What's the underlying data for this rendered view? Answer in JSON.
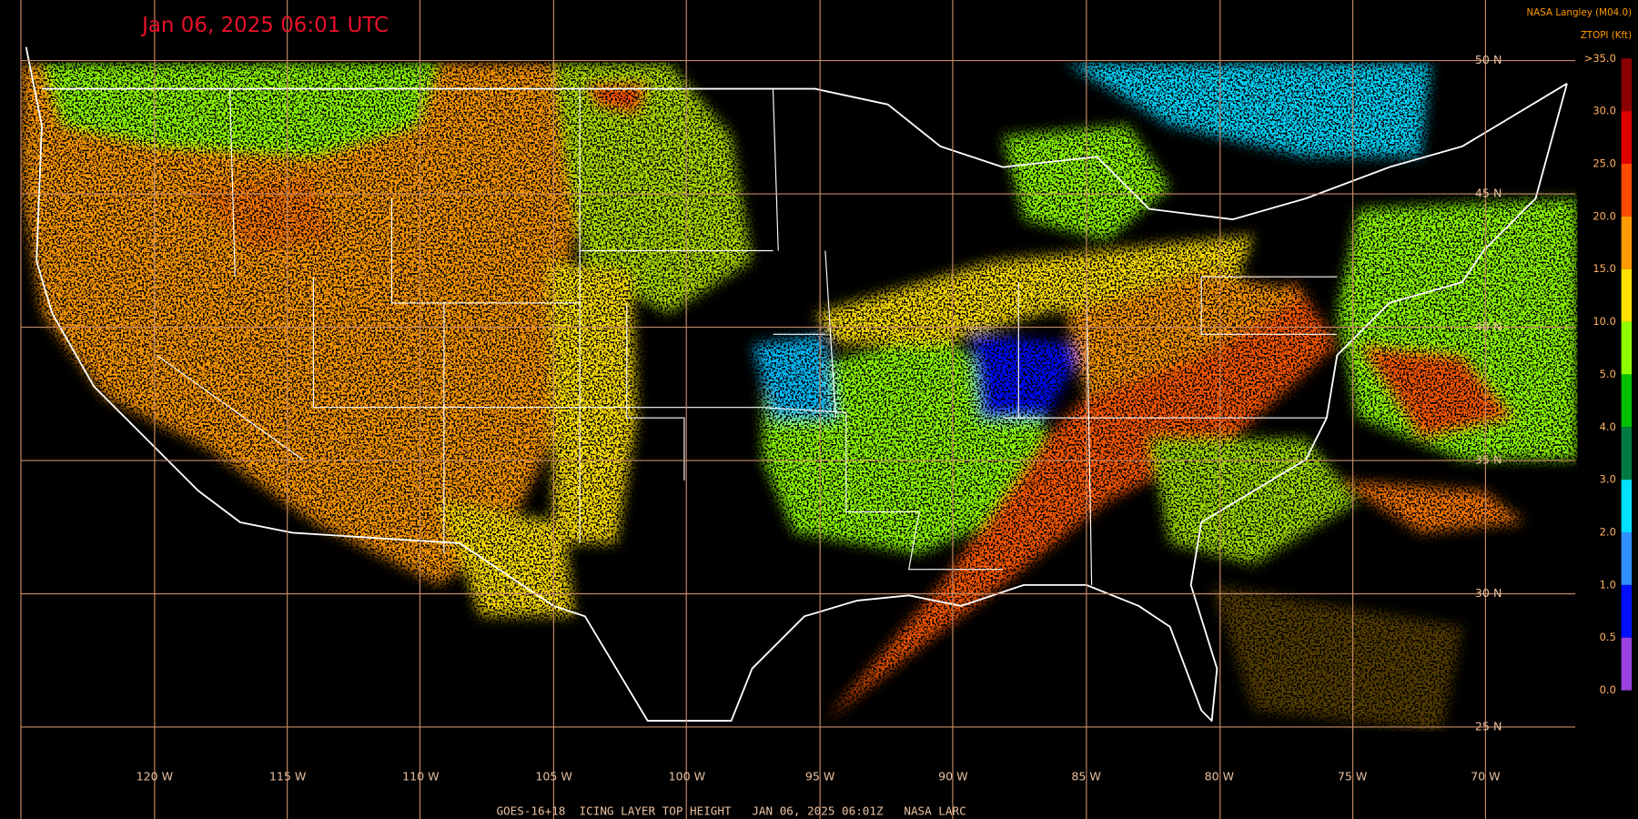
{
  "map": {
    "title": "Jan 06, 2025 06:01 UTC",
    "credit": "NASA Langley (M04.0)",
    "footer": "GOES-16+18  ICING LAYER TOP HEIGHT   JAN 06, 2025 06:01Z   NASA LARC",
    "lat_labels": [
      "50 N",
      "45 N",
      "40 N",
      "35 N",
      "30 N",
      "25 N"
    ],
    "lon_labels": [
      "120 W",
      "115 W",
      "110 W",
      "105 W",
      "100 W",
      "95 W",
      "90 W",
      "85 W",
      "80 W",
      "75 W",
      "70 W"
    ],
    "legend": {
      "title": "ZTOPI (Kft)",
      "labels": [
        ">35.0",
        "30.0",
        "25.0",
        "20.0",
        "15.0",
        "10.0",
        "5.0",
        "4.0",
        "3.0",
        "2.0",
        "1.0",
        "0.5",
        "0.0"
      ],
      "colors": [
        "#8b0000",
        "#e00000",
        "#ff4a00",
        "#ff9a00",
        "#ffe000",
        "#90ff00",
        "#00c000",
        "#007a40",
        "#00e0ff",
        "#3090ff",
        "#0010ff",
        "#9a40e0"
      ]
    }
  }
}
